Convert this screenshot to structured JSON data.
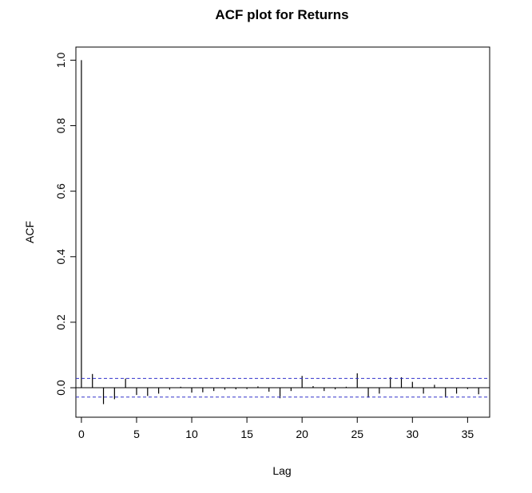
{
  "chart_data": {
    "type": "bar",
    "title": "ACF plot for Returns",
    "xlabel": "Lag",
    "ylabel": "ACF",
    "xlim": [
      -0.5,
      37
    ],
    "ylim": [
      -0.09,
      1.04
    ],
    "x_ticks": [
      0,
      5,
      10,
      15,
      20,
      25,
      30,
      35
    ],
    "y_ticks": [
      0.0,
      0.2,
      0.4,
      0.6,
      0.8,
      1.0
    ],
    "y_tick_labels": [
      "0.0",
      "0.2",
      "0.4",
      "0.6",
      "0.8",
      "1.0"
    ],
    "grid": false,
    "legend": "none",
    "lags": [
      0,
      1,
      2,
      3,
      4,
      5,
      6,
      7,
      8,
      9,
      10,
      11,
      12,
      13,
      14,
      15,
      16,
      17,
      18,
      19,
      20,
      21,
      22,
      23,
      24,
      25,
      26,
      27,
      28,
      29,
      30,
      31,
      32,
      33,
      34,
      35,
      36
    ],
    "acf": [
      1.0,
      0.042,
      -0.05,
      -0.035,
      0.028,
      -0.022,
      -0.025,
      -0.018,
      -0.006,
      0.003,
      -0.015,
      -0.014,
      -0.01,
      -0.006,
      -0.005,
      -0.004,
      0.004,
      -0.012,
      -0.032,
      -0.01,
      0.036,
      0.005,
      -0.01,
      -0.005,
      0.003,
      0.044,
      -0.03,
      -0.018,
      0.032,
      0.032,
      0.018,
      -0.018,
      0.009,
      -0.03,
      -0.018,
      -0.004,
      -0.02
    ],
    "confidence_band": [
      -0.0285,
      0.0285
    ],
    "colors": {
      "bars": "#000000",
      "confidence": "#3333cc",
      "zero_line": "#000000",
      "frame": "#000000"
    }
  }
}
